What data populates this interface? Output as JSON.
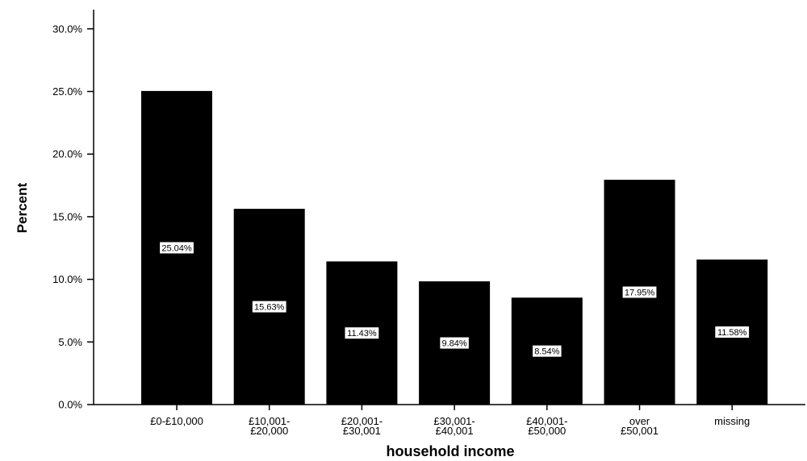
{
  "chart_data": {
    "type": "bar",
    "title": "",
    "xlabel": "household income",
    "ylabel": "Percent",
    "categories": [
      [
        "£0-£10,000"
      ],
      [
        "£10,001-",
        "£20,000"
      ],
      [
        "£20,001-",
        "£30,001"
      ],
      [
        "£30,001-",
        "£40,001"
      ],
      [
        "£40,001-",
        "£50,000"
      ],
      [
        "over",
        "£50,001"
      ],
      [
        "missing"
      ]
    ],
    "values": [
      25.04,
      15.63,
      11.43,
      9.84,
      8.54,
      17.95,
      11.58
    ],
    "data_labels": [
      "25.04%",
      "15.63%",
      "11.43%",
      "9.84%",
      "8.54%",
      "17.95%",
      "11.58%"
    ],
    "yticks": [
      "0.0%",
      "5.0%",
      "10.0%",
      "15.0%",
      "20.0%",
      "25.0%",
      "30.0%"
    ],
    "ytick_values": [
      0,
      5,
      10,
      15,
      20,
      25,
      30
    ],
    "ylim": [
      0,
      31
    ],
    "grid": false,
    "colors": {
      "bar": "#000000",
      "label_bg": "#ffffff",
      "axis": "#000000"
    }
  }
}
